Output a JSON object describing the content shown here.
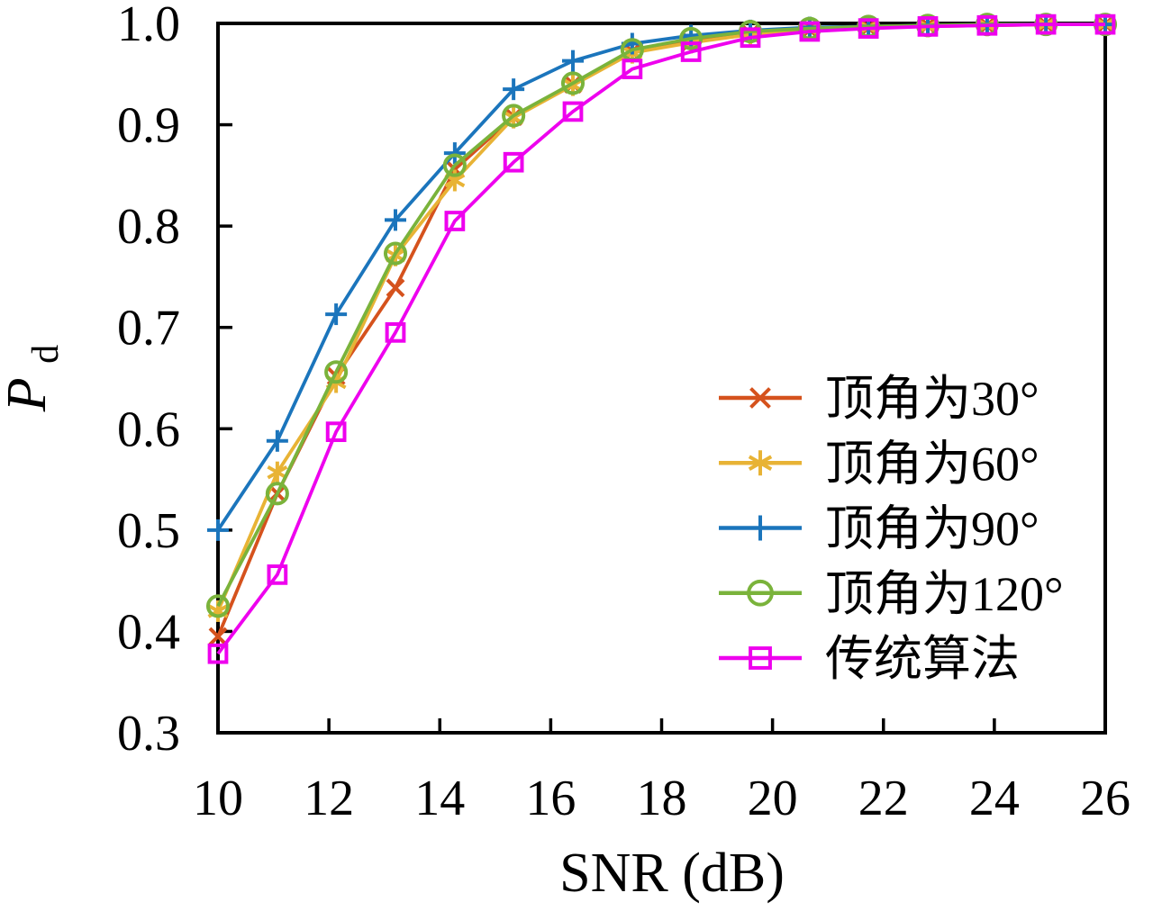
{
  "figure": {
    "background": "#ffffff",
    "frame_color": "#000000",
    "text_color": "#000000"
  },
  "chart_data": {
    "type": "line",
    "title": "",
    "xlabel": "SNR (dB)",
    "ylabel": "P",
    "ylabel_sub": "d",
    "xlim": [
      10,
      26
    ],
    "ylim": [
      0.3,
      1.0
    ],
    "x_ticks": [
      10,
      12,
      14,
      16,
      18,
      20,
      22,
      24,
      26
    ],
    "y_ticks": [
      0.3,
      0.4,
      0.5,
      0.6,
      0.7,
      0.8,
      0.9,
      1.0
    ],
    "grid": false,
    "legend_position": "inside-right-middle",
    "legend_frame": false,
    "x": [
      10,
      11.07,
      12.13,
      13.2,
      14.27,
      15.33,
      16.4,
      17.47,
      18.53,
      19.6,
      20.67,
      21.73,
      22.8,
      23.87,
      24.93,
      26
    ],
    "series": [
      {
        "key": "apex-30",
        "name": "顶角为30°",
        "color": "#d5521d",
        "marker": "x",
        "values": [
          0.395,
          0.536,
          0.652,
          0.739,
          0.856,
          0.908,
          0.94,
          0.972,
          0.982,
          0.99,
          0.994,
          0.996,
          0.998,
          0.998,
          0.999,
          0.999
        ]
      },
      {
        "key": "apex-60",
        "name": "顶角为60°",
        "color": "#e8b335",
        "marker": "asterisk",
        "values": [
          0.42,
          0.557,
          0.646,
          0.771,
          0.845,
          0.907,
          0.939,
          0.971,
          0.981,
          0.989,
          0.994,
          0.996,
          0.997,
          0.998,
          0.999,
          0.999
        ]
      },
      {
        "key": "apex-90",
        "name": "顶角为90°",
        "color": "#1b75bc",
        "marker": "plus",
        "values": [
          0.5,
          0.588,
          0.713,
          0.806,
          0.872,
          0.935,
          0.963,
          0.98,
          0.988,
          0.993,
          0.996,
          0.997,
          0.998,
          0.999,
          0.999,
          0.999
        ]
      },
      {
        "key": "apex-120",
        "name": "顶角为120°",
        "color": "#7ab33b",
        "marker": "circle",
        "values": [
          0.425,
          0.536,
          0.656,
          0.773,
          0.86,
          0.909,
          0.941,
          0.974,
          0.985,
          0.992,
          0.995,
          0.997,
          0.998,
          0.999,
          0.999,
          0.999
        ]
      },
      {
        "key": "traditional",
        "name": "传统算法",
        "color": "#ee00ee",
        "marker": "square",
        "values": [
          0.378,
          0.456,
          0.597,
          0.695,
          0.805,
          0.863,
          0.913,
          0.955,
          0.972,
          0.986,
          0.992,
          0.995,
          0.997,
          0.998,
          0.999,
          0.999
        ]
      }
    ]
  }
}
